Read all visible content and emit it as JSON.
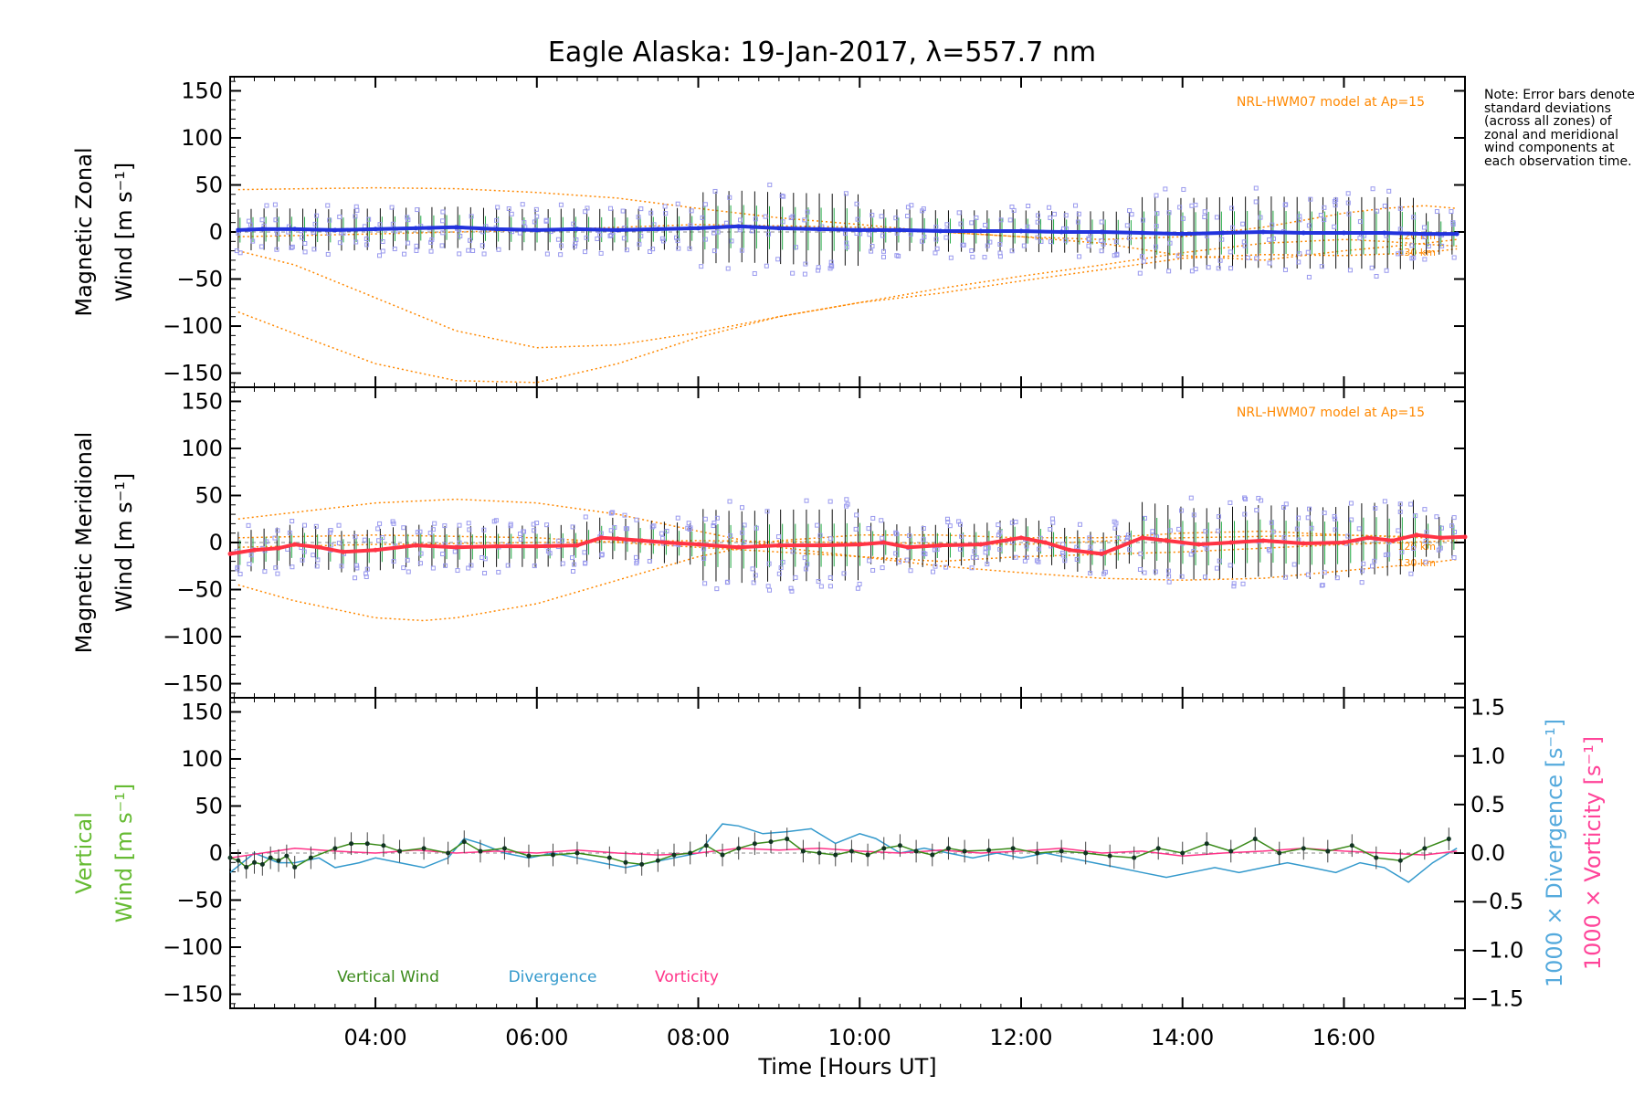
{
  "title": "Eagle Alaska: 19-Jan-2017, λ=557.7 nm",
  "note": "Note: Error bars denote standard deviations (across all zones) of zonal and meridional wind components at each observation time.",
  "colors": {
    "zonal": "#2233dd",
    "meridional": "#ff3344",
    "vertical": "#3a8a1a",
    "divergence": "#3399cc",
    "vorticity": "#ff3388",
    "model": "#ff8800",
    "scatter": "#9999ee"
  },
  "chart_data": [
    {
      "type": "line",
      "panel": "zonal",
      "ylabel": [
        "Magnetic Zonal",
        "Wind [m s⁻¹]"
      ],
      "ylim": [
        -165,
        165
      ],
      "yticks": [
        -150,
        -100,
        -50,
        0,
        50,
        100,
        150
      ],
      "xlim": [
        2.2,
        17.5
      ],
      "model_label": "NRL-HWM07 model at Ap=15",
      "model_alt_labels": [
        "120 km",
        "130 km"
      ],
      "series": [
        {
          "x": [
            2.3,
            2.6,
            3.0,
            3.5,
            4.0,
            4.5,
            5.0,
            5.5,
            6.0,
            6.5,
            7.0,
            7.5,
            8.0,
            8.5,
            9.0,
            9.5,
            10.0,
            10.5,
            11.0,
            11.5,
            12.0,
            12.5,
            13.0,
            13.5,
            14.0,
            14.5,
            15.0,
            15.5,
            16.0,
            16.5,
            17.0,
            17.4
          ],
          "y": [
            2,
            3,
            3,
            2,
            3,
            4,
            5,
            3,
            2,
            3,
            2,
            3,
            4,
            6,
            4,
            3,
            2,
            2,
            1,
            1,
            1,
            0,
            0,
            -1,
            -2,
            -1,
            0,
            -1,
            -1,
            -1,
            -2,
            -2
          ]
        }
      ],
      "model_curves": [
        {
          "x": [
            2.3,
            4.0,
            5.0,
            6.0,
            7.0,
            8.0,
            9.0,
            10.0,
            11.0,
            12.0,
            13.0,
            14.0,
            15.0,
            16.0,
            16.5,
            17.0,
            17.4
          ],
          "y": [
            45,
            47,
            46,
            42,
            36,
            25,
            15,
            8,
            0,
            -5,
            -8,
            -5,
            5,
            20,
            25,
            28,
            25
          ]
        },
        {
          "x": [
            2.3,
            3.0,
            4.0,
            5.0,
            6.0,
            7.0,
            8.0,
            9.0,
            10.0,
            11.0,
            12.0,
            13.0,
            14.0,
            15.0,
            16.0,
            16.5,
            17.0,
            17.4
          ],
          "y": [
            -20,
            -35,
            -70,
            -105,
            -123,
            -120,
            -107,
            -90,
            -75,
            -60,
            -47,
            -35,
            -22,
            -12,
            -8,
            -10,
            -13,
            -15
          ]
        },
        {
          "x": [
            2.3,
            3.0,
            4.0,
            5.0,
            6.0,
            7.0,
            8.0,
            9.0,
            10.0,
            11.0,
            12.0,
            13.0,
            14.0,
            15.0,
            16.0,
            17.0,
            17.4
          ],
          "y": [
            -85,
            -108,
            -140,
            -158,
            -160,
            -140,
            -112,
            -90,
            -75,
            -65,
            -52,
            -40,
            -28,
            -24,
            -25,
            -22,
            -18
          ]
        },
        {
          "x": [
            2.3,
            4.0,
            6.0,
            8.0,
            10.0,
            12.0,
            13.0,
            14.0,
            15.0,
            16.0,
            17.0,
            17.4
          ],
          "y": [
            -5,
            -2,
            2,
            8,
            5,
            -5,
            -12,
            -25,
            -30,
            -20,
            -12,
            -8
          ]
        }
      ]
    },
    {
      "type": "line",
      "panel": "meridional",
      "ylabel": [
        "Magnetic Meridional",
        "Wind [m s⁻¹]"
      ],
      "ylim": [
        -165,
        165
      ],
      "yticks": [
        -150,
        -100,
        -50,
        0,
        50,
        100,
        150
      ],
      "xlim": [
        2.2,
        17.5
      ],
      "model_label": "NRL-HWM07 model at Ap=15",
      "model_alt_labels": [
        "120 km",
        "130 km"
      ],
      "series": [
        {
          "x": [
            2.2,
            2.5,
            2.8,
            3.0,
            3.3,
            3.6,
            4.0,
            4.5,
            5.0,
            5.5,
            6.0,
            6.5,
            6.8,
            7.0,
            7.3,
            7.6,
            8.0,
            8.5,
            9.0,
            9.5,
            10.0,
            10.3,
            10.6,
            11.0,
            11.5,
            12.0,
            12.3,
            12.6,
            13.0,
            13.5,
            13.8,
            14.2,
            14.6,
            15.0,
            15.5,
            16.0,
            16.3,
            16.6,
            16.9,
            17.2,
            17.5
          ],
          "y": [
            -12,
            -8,
            -6,
            -2,
            -5,
            -10,
            -8,
            -3,
            -5,
            -4,
            -4,
            -3,
            5,
            4,
            2,
            0,
            -2,
            -5,
            -3,
            -3,
            -2,
            0,
            -5,
            -3,
            -2,
            5,
            0,
            -8,
            -12,
            5,
            2,
            -2,
            0,
            2,
            -1,
            0,
            5,
            2,
            8,
            5,
            6
          ]
        }
      ],
      "model_curves": [
        {
          "x": [
            2.3,
            3.0,
            4.0,
            5.0,
            6.0,
            7.0,
            8.0,
            9.0,
            10.0,
            11.0,
            12.0,
            13.0,
            14.0,
            15.0,
            16.0,
            17.0,
            17.4
          ],
          "y": [
            25,
            32,
            42,
            46,
            42,
            30,
            12,
            -5,
            -15,
            -25,
            -32,
            -38,
            -40,
            -38,
            -30,
            -22,
            -18
          ]
        },
        {
          "x": [
            2.3,
            3.0,
            4.0,
            4.6,
            5.0,
            6.0,
            7.0,
            8.0,
            9.0,
            10.0,
            11.0,
            12.0,
            13.0,
            14.0,
            15.0,
            16.0,
            17.0,
            17.4
          ],
          "y": [
            -45,
            -62,
            -80,
            -83,
            -80,
            -65,
            -40,
            -15,
            2,
            8,
            8,
            5,
            5,
            10,
            12,
            8,
            5,
            5
          ]
        },
        {
          "x": [
            2.3,
            4.0,
            6.0,
            8.0,
            10.0,
            12.0,
            14.0,
            16.0,
            17.4
          ],
          "y": [
            -5,
            -2,
            0,
            2,
            0,
            -2,
            5,
            8,
            5
          ]
        },
        {
          "x": [
            2.3,
            4.0,
            6.0,
            8.0,
            10.0,
            11.0,
            12.0,
            14.0,
            16.0,
            17.4
          ],
          "y": [
            5,
            8,
            5,
            -5,
            -15,
            -20,
            -15,
            -10,
            -2,
            2
          ]
        }
      ]
    },
    {
      "type": "line",
      "panel": "vertical",
      "ylabel": [
        "Vertical",
        "Wind [m s⁻¹]"
      ],
      "ylim": [
        -165,
        165
      ],
      "yticks": [
        -150,
        -100,
        -50,
        0,
        50,
        100,
        150
      ],
      "y2label_divergence": "1000 × Divergence [s⁻¹]",
      "y2label_vorticity": "1000 × Vorticity [s⁻¹]",
      "y2lim": [
        -1.6,
        1.6
      ],
      "y2ticks": [
        -1.5,
        -1.0,
        -0.5,
        0.0,
        0.5,
        1.0,
        1.5
      ],
      "xlabel": "Time [Hours UT]",
      "xlim": [
        2.2,
        17.5
      ],
      "xticks": [
        4,
        6,
        8,
        10,
        12,
        14,
        16
      ],
      "xticklabels": [
        "04:00",
        "06:00",
        "08:00",
        "10:00",
        "12:00",
        "14:00",
        "16:00"
      ],
      "legend": [
        "Vertical Wind",
        "Divergence",
        "Vorticity"
      ],
      "series": [
        {
          "name": "Vertical Wind",
          "x": [
            2.2,
            2.3,
            2.4,
            2.5,
            2.6,
            2.7,
            2.8,
            2.9,
            3.0,
            3.2,
            3.5,
            3.7,
            3.9,
            4.1,
            4.3,
            4.6,
            4.9,
            5.1,
            5.3,
            5.6,
            5.9,
            6.2,
            6.5,
            6.9,
            7.1,
            7.3,
            7.5,
            7.7,
            7.9,
            8.1,
            8.3,
            8.5,
            8.7,
            8.9,
            9.1,
            9.3,
            9.5,
            9.7,
            9.9,
            10.1,
            10.3,
            10.5,
            10.7,
            10.9,
            11.1,
            11.3,
            11.6,
            11.9,
            12.2,
            12.5,
            12.8,
            13.1,
            13.4,
            13.7,
            14.0,
            14.3,
            14.6,
            14.9,
            15.2,
            15.5,
            15.8,
            16.1,
            16.4,
            16.7,
            17.0,
            17.3
          ],
          "y": [
            -5,
            -8,
            -15,
            -10,
            -12,
            -5,
            -8,
            -3,
            -15,
            -5,
            5,
            10,
            10,
            8,
            2,
            5,
            0,
            12,
            2,
            5,
            -3,
            -2,
            0,
            -5,
            -10,
            -12,
            -8,
            -2,
            0,
            8,
            -2,
            5,
            10,
            12,
            15,
            2,
            0,
            -2,
            2,
            -2,
            5,
            8,
            2,
            -2,
            5,
            2,
            3,
            5,
            0,
            2,
            0,
            -3,
            -5,
            5,
            0,
            10,
            2,
            15,
            0,
            5,
            2,
            8,
            -5,
            -8,
            5,
            15
          ]
        },
        {
          "name": "Divergence",
          "x": [
            2.2,
            2.5,
            2.8,
            3.0,
            3.3,
            3.5,
            3.8,
            4.0,
            4.3,
            4.6,
            4.9,
            5.1,
            5.3,
            5.6,
            5.9,
            6.2,
            6.5,
            6.8,
            7.1,
            7.4,
            7.7,
            8.0,
            8.3,
            8.5,
            8.8,
            9.1,
            9.4,
            9.7,
            10.0,
            10.2,
            10.5,
            10.8,
            11.1,
            11.4,
            11.7,
            12.0,
            12.3,
            12.6,
            12.9,
            13.2,
            13.5,
            13.8,
            14.1,
            14.4,
            14.7,
            15.0,
            15.3,
            15.6,
            15.9,
            16.2,
            16.5,
            16.8,
            17.1,
            17.4
          ],
          "y": [
            -0.2,
            0.0,
            -0.1,
            -0.1,
            -0.05,
            -0.15,
            -0.1,
            -0.05,
            -0.1,
            -0.15,
            -0.05,
            0.15,
            0.1,
            0.0,
            -0.05,
            0.0,
            -0.05,
            -0.1,
            -0.15,
            -0.1,
            -0.05,
            0.0,
            0.3,
            0.28,
            0.2,
            0.22,
            0.25,
            0.1,
            0.2,
            0.15,
            0.0,
            0.05,
            0.0,
            -0.05,
            0.0,
            -0.05,
            0.0,
            -0.05,
            -0.1,
            -0.15,
            -0.2,
            -0.25,
            -0.2,
            -0.15,
            -0.2,
            -0.15,
            -0.1,
            -0.15,
            -0.2,
            -0.1,
            -0.15,
            -0.3,
            -0.1,
            0.05
          ]
        },
        {
          "name": "Vorticity",
          "x": [
            2.2,
            2.6,
            3.0,
            3.5,
            4.0,
            4.5,
            5.0,
            5.5,
            6.0,
            6.5,
            7.0,
            7.5,
            8.0,
            8.5,
            9.0,
            9.5,
            10.0,
            10.5,
            11.0,
            11.5,
            12.0,
            12.5,
            13.0,
            13.5,
            14.0,
            14.5,
            15.0,
            15.5,
            16.0,
            16.5,
            17.0,
            17.4
          ],
          "y": [
            -0.05,
            0.0,
            0.05,
            0.02,
            0.0,
            0.03,
            0.0,
            0.02,
            0.0,
            0.03,
            0.0,
            -0.02,
            0.0,
            0.05,
            0.03,
            0.05,
            0.02,
            0.0,
            0.03,
            0.0,
            0.02,
            0.05,
            0.0,
            0.02,
            -0.03,
            0.0,
            0.02,
            0.05,
            0.02,
            0.0,
            -0.02,
            0.02
          ]
        }
      ]
    }
  ]
}
